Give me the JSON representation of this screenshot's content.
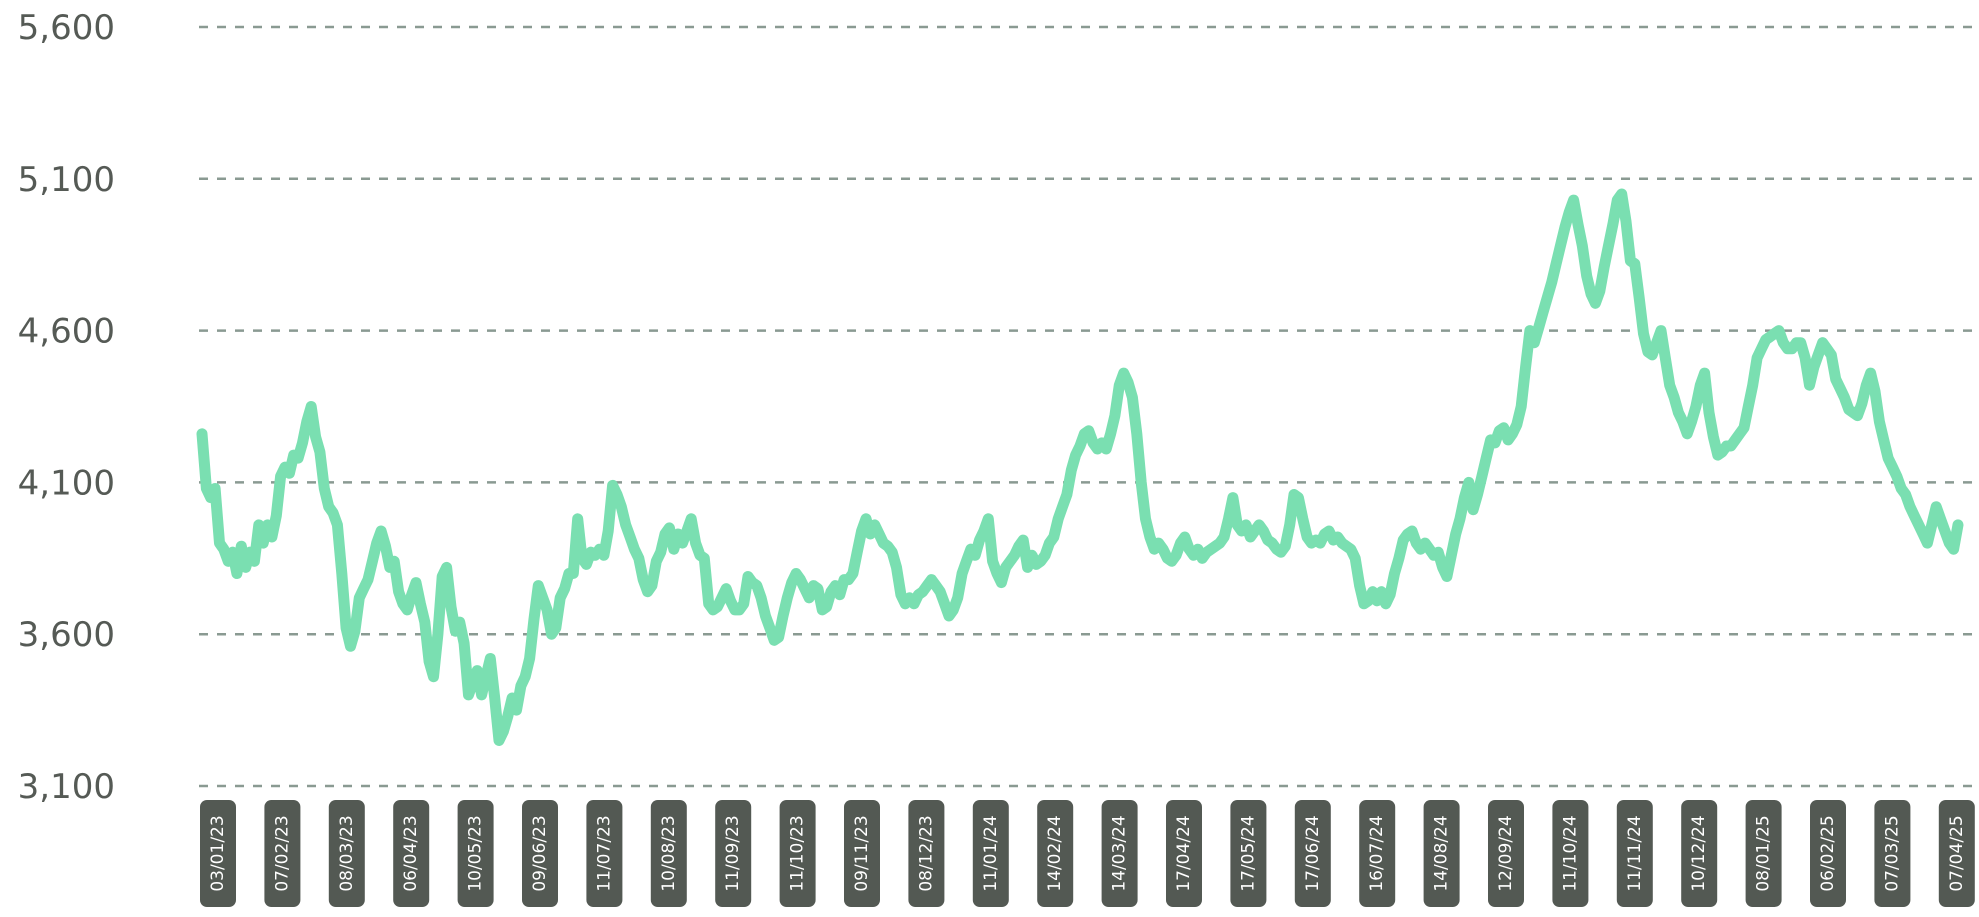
{
  "chart_data": {
    "type": "line",
    "title": "",
    "xlabel": "",
    "ylabel": "",
    "ylim": [
      3100,
      5600
    ],
    "yticks": [
      "5,600",
      "5,100",
      "4,600",
      "4,100",
      "3,600",
      "3,100"
    ],
    "ytick_values": [
      5600,
      5100,
      4600,
      4100,
      3600,
      3100
    ],
    "grid": true,
    "xtick_labels": [
      "03/01/23",
      "07/02/23",
      "08/03/23",
      "06/04/23",
      "10/05/23",
      "09/06/23",
      "11/07/23",
      "10/08/23",
      "11/09/23",
      "11/10/23",
      "09/11/23",
      "08/12/23",
      "11/01/24",
      "14/02/24",
      "14/03/24",
      "17/04/24",
      "17/05/24",
      "17/06/24",
      "16/07/24",
      "14/08/24",
      "12/09/24",
      "11/10/24",
      "11/11/24",
      "10/12/24",
      "08/01/25",
      "06/02/25",
      "07/03/25",
      "07/04/25"
    ],
    "colors": {
      "line": "#7adfb1",
      "grid": "#8a9a92",
      "badge": "#535953",
      "ytick": "#555a55"
    },
    "series": [
      {
        "values": [
          4260,
          4080,
          4050,
          4080,
          3900,
          3880,
          3840,
          3870,
          3800,
          3890,
          3820,
          3870,
          3840,
          3960,
          3900,
          3960,
          3920,
          3990,
          4120,
          4150,
          4130,
          4190,
          4180,
          4230,
          4300,
          4350,
          4250,
          4200,
          4080,
          4020,
          4000,
          3960,
          3800,
          3620,
          3560,
          3610,
          3720,
          3750,
          3780,
          3840,
          3900,
          3940,
          3890,
          3820,
          3840,
          3740,
          3700,
          3680,
          3730,
          3770,
          3700,
          3640,
          3510,
          3460,
          3600,
          3790,
          3820,
          3690,
          3610,
          3640,
          3570,
          3400,
          3440,
          3480,
          3400,
          3460,
          3520,
          3390,
          3250,
          3280,
          3330,
          3390,
          3350,
          3430,
          3460,
          3520,
          3650,
          3760,
          3720,
          3680,
          3600,
          3620,
          3720,
          3750,
          3800,
          3800,
          3980,
          3850,
          3830,
          3870,
          3860,
          3880,
          3860,
          3940,
          4090,
          4060,
          4020,
          3960,
          3920,
          3880,
          3850,
          3780,
          3740,
          3760,
          3840,
          3870,
          3930,
          3950,
          3880,
          3930,
          3900,
          3940,
          3980,
          3900,
          3860,
          3850,
          3700,
          3680,
          3690,
          3720,
          3750,
          3710,
          3680,
          3680,
          3700,
          3790,
          3770,
          3760,
          3720,
          3660,
          3620,
          3580,
          3590,
          3660,
          3720,
          3770,
          3800,
          3780,
          3750,
          3720,
          3760,
          3750,
          3680,
          3690,
          3740,
          3760,
          3730,
          3780,
          3780,
          3800,
          3870,
          3940,
          3980,
          3930,
          3960,
          3930,
          3900,
          3890,
          3870,
          3820,
          3730,
          3700,
          3720,
          3700,
          3730,
          3740,
          3760,
          3780,
          3760,
          3740,
          3700,
          3660,
          3680,
          3720,
          3800,
          3840,
          3880,
          3860,
          3910,
          3940,
          3980,
          3840,
          3800,
          3770,
          3820,
          3840,
          3860,
          3890,
          3910,
          3820,
          3860,
          3830,
          3840,
          3860,
          3900,
          3920,
          3980,
          4020,
          4060,
          4140,
          4190,
          4220,
          4260,
          4270,
          4230,
          4210,
          4230,
          4210,
          4260,
          4320,
          4420,
          4460,
          4430,
          4380,
          4260,
          4100,
          3980,
          3920,
          3880,
          3900,
          3880,
          3850,
          3840,
          3860,
          3900,
          3920,
          3880,
          3860,
          3880,
          3850,
          3870,
          3880,
          3890,
          3900,
          3920,
          3980,
          4050,
          3960,
          3940,
          3960,
          3920,
          3940,
          3960,
          3940,
          3910,
          3900,
          3880,
          3870,
          3890,
          3960,
          4060,
          4050,
          3980,
          3920,
          3900,
          3910,
          3900,
          3930,
          3940,
          3910,
          3920,
          3900,
          3890,
          3880,
          3850,
          3760,
          3700,
          3710,
          3740,
          3710,
          3740,
          3700,
          3730,
          3800,
          3850,
          3910,
          3930,
          3940,
          3900,
          3880,
          3900,
          3880,
          3860,
          3870,
          3820,
          3790,
          3860,
          3930,
          3980,
          4050,
          4100,
          4010,
          4060,
          4120,
          4180,
          4240,
          4230,
          4270,
          4280,
          4240,
          4260,
          4290,
          4350,
          4480,
          4600,
          4560,
          4610,
          4660,
          4710,
          4760,
          4820,
          4880,
          4940,
          4990,
          5030,
          4950,
          4880,
          4780,
          4720,
          4690,
          4730,
          4810,
          4880,
          4950,
          5030,
          5050,
          4960,
          4830,
          4820,
          4710,
          4590,
          4530,
          4520,
          4560,
          4600,
          4510,
          4420,
          4380,
          4330,
          4300,
          4260,
          4300,
          4350,
          4420,
          4460,
          4330,
          4250,
          4190,
          4200,
          4220,
          4220,
          4240,
          4260,
          4280,
          4350,
          4420,
          4510,
          4540,
          4570,
          4580,
          4590,
          4600,
          4560,
          4540,
          4540,
          4560,
          4560,
          4510,
          4420,
          4480,
          4520,
          4560,
          4540,
          4520,
          4440,
          4410,
          4380,
          4340,
          4330,
          4320,
          4360,
          4420,
          4460,
          4400,
          4300,
          4240,
          4180,
          4150,
          4120,
          4080,
          4060,
          4020,
          3990,
          3960,
          3930,
          3900,
          3960,
          4020,
          3980,
          3940,
          3900,
          3880,
          3960
        ]
      }
    ]
  }
}
